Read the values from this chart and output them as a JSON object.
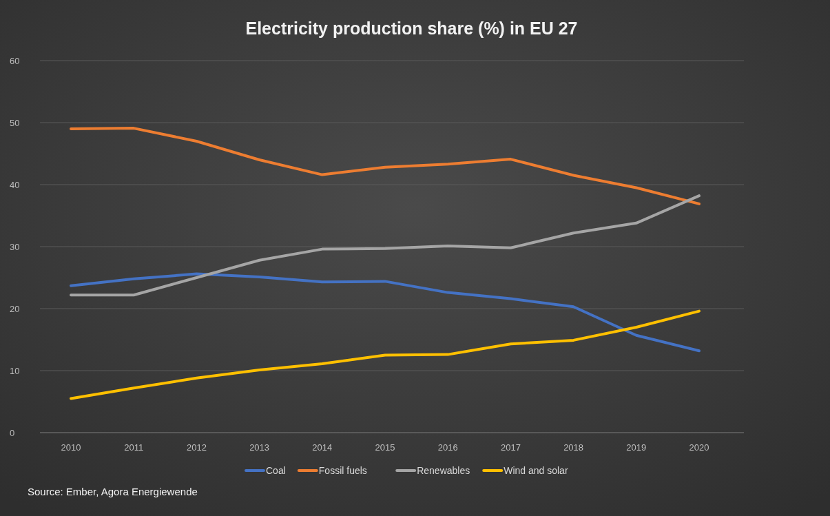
{
  "chart_data": {
    "type": "line",
    "title": "Electricity production share (%) in EU 27",
    "categories": [
      "2010",
      "2011",
      "2012",
      "2013",
      "2014",
      "2015",
      "2016",
      "2017",
      "2018",
      "2019",
      "2020"
    ],
    "series": [
      {
        "name": "Coal",
        "color": "#4472c4",
        "values": [
          23.7,
          24.8,
          25.6,
          25.1,
          24.3,
          24.4,
          22.6,
          21.6,
          20.3,
          15.7,
          13.2
        ]
      },
      {
        "name": "Fossil fuels",
        "color": "#ed7d31",
        "values": [
          49,
          49.1,
          47,
          44,
          41.6,
          42.8,
          43.3,
          44.1,
          41.5,
          39.5,
          36.9
        ]
      },
      {
        "name": "Renewables",
        "color": "#a5a5a5",
        "values": [
          22.2,
          22.2,
          25,
          27.8,
          29.6,
          29.7,
          30.1,
          29.8,
          32.2,
          33.8,
          38.2
        ]
      },
      {
        "name": "Wind and solar",
        "color": "#ffc000",
        "values": [
          5.5,
          7.2,
          8.8,
          10.1,
          11.1,
          12.5,
          12.6,
          14.3,
          14.9,
          17,
          19.6
        ]
      }
    ],
    "ylim": [
      0,
      60
    ],
    "yticks": [
      0,
      10,
      20,
      30,
      40,
      50,
      60
    ],
    "grid": "y",
    "legend": "bottom",
    "marker": "none",
    "line_style": "solid",
    "annotations": [
      "Source: Ember, Agora Energiewende"
    ]
  }
}
